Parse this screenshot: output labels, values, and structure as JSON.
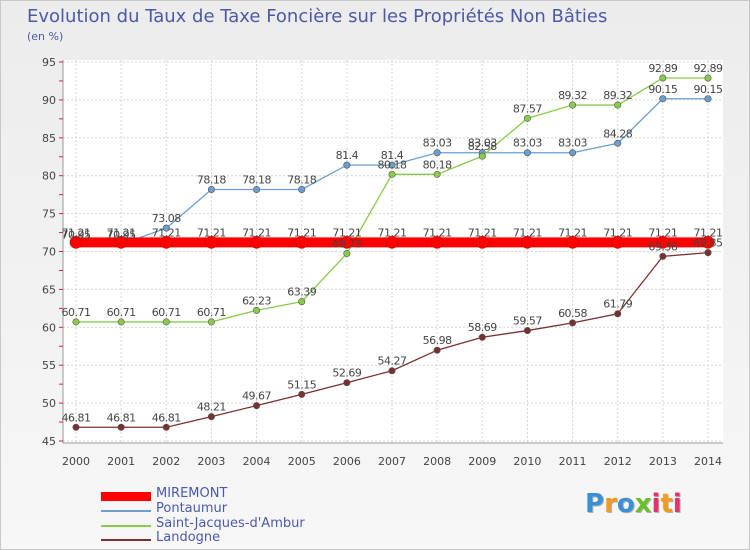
{
  "title": "Evolution du Taux de Taxe Foncière sur les Propriétés Non Bâties",
  "unit": "(en %)",
  "logo": {
    "text": "Proxiti",
    "letter_colors": [
      "#3a8fd6",
      "#f39a1f",
      "#3a8fd6",
      "#6cbf2a",
      "#e2336c",
      "#f39a1f",
      "#e2336c"
    ]
  },
  "chart_data": {
    "type": "line",
    "title": "Evolution du Taux de Taxe Foncière sur les Propriétés Non Bâties",
    "ylabel": "(en %)",
    "xlabel": "",
    "ylim": [
      45,
      95
    ],
    "yticks": [
      45,
      50,
      55,
      60,
      65,
      70,
      75,
      80,
      85,
      90,
      95
    ],
    "x": [
      "2000",
      "2001",
      "2002",
      "2003",
      "2004",
      "2005",
      "2006",
      "2007",
      "2008",
      "2009",
      "2010",
      "2011",
      "2012",
      "2013",
      "2014"
    ],
    "grid": true,
    "legend": "bottom-left",
    "series": [
      {
        "name": "Pontaumur",
        "color": "#6a9fd0",
        "values": [
          70.95,
          70.95,
          73.08,
          78.18,
          78.18,
          78.18,
          81.4,
          81.4,
          83.03,
          83.03,
          83.03,
          83.03,
          84.28,
          90.15,
          90.15
        ],
        "labels": [
          "70.95",
          "70.95",
          "73.08",
          "78.18",
          "78.18",
          "78.18",
          "81.4",
          "81.4",
          "83.03",
          "83.03",
          "83.03",
          "83.03",
          "84.28",
          "90.15",
          "90.15"
        ]
      },
      {
        "name": "Saint-Jacques-d'Ambur",
        "color": "#88cc4a",
        "values": [
          60.71,
          60.71,
          60.71,
          60.71,
          62.23,
          63.39,
          69.73,
          80.18,
          80.18,
          82.58,
          87.57,
          89.32,
          89.32,
          92.89,
          92.89
        ],
        "labels": [
          "60.71",
          "60.71",
          "60.71",
          "60.71",
          "62.23",
          "63.39",
          "69.73",
          "80.18",
          "80.18",
          "82.58",
          "87.57",
          "89.32",
          "89.32",
          "92.89",
          "92.89"
        ]
      },
      {
        "name": "Landogne",
        "color": "#7a3030",
        "values": [
          46.81,
          46.81,
          46.81,
          48.21,
          49.67,
          51.15,
          52.69,
          54.27,
          56.98,
          58.69,
          59.57,
          60.58,
          61.79,
          69.36,
          69.85
        ],
        "labels": [
          "46.81",
          "46.81",
          "46.81",
          "48.21",
          "49.67",
          "51.15",
          "52.69",
          "54.27",
          "56.98",
          "58.69",
          "59.57",
          "60.58",
          "61.79",
          "69.36",
          "69.85"
        ]
      },
      {
        "name": "MIREMONT",
        "color": "#ff0000",
        "values": [
          71.21,
          71.21,
          71.21,
          71.21,
          71.21,
          71.21,
          71.21,
          71.21,
          71.21,
          71.21,
          71.21,
          71.21,
          71.21,
          71.21,
          71.21
        ],
        "labels": [
          "71.21",
          "71.21",
          "71.21",
          "71.21",
          "71.21",
          "71.21",
          "71.21",
          "71.21",
          "71.21",
          "71.21",
          "71.21",
          "71.21",
          "71.21",
          "71.21",
          "71.21"
        ]
      }
    ],
    "legend_order": [
      "MIREMONT",
      "Pontaumur",
      "Saint-Jacques-d'Ambur",
      "Landogne"
    ]
  }
}
